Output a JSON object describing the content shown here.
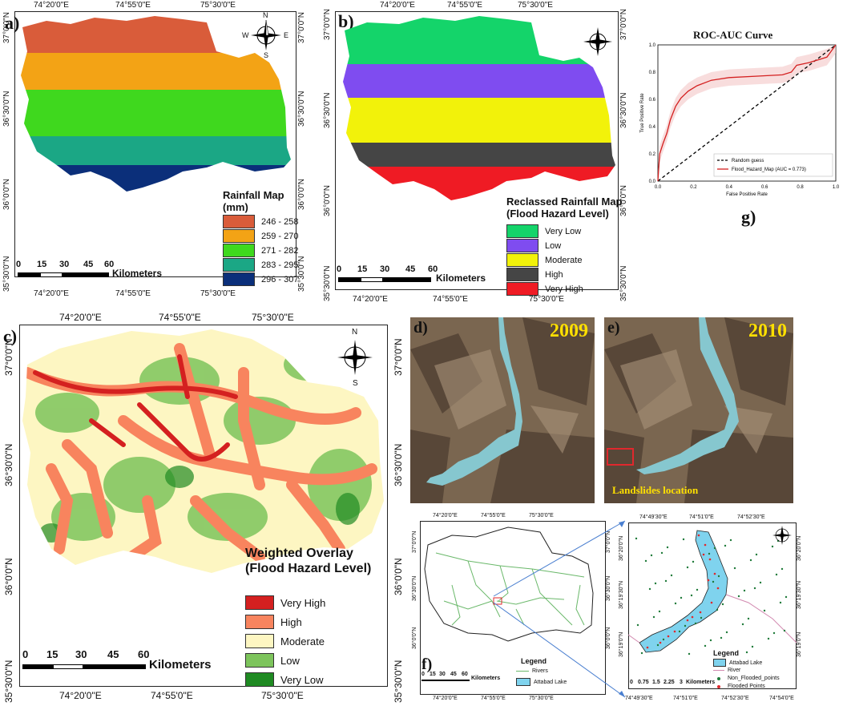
{
  "panels": {
    "a": {
      "label": "a)",
      "top_coords": [
        "74°20'0\"E",
        "74°55'0\"E",
        "75°30'0\"E"
      ],
      "bottom_coords": [
        "74°20'0\"E",
        "74°55'0\"E",
        "75°30'0\"E"
      ],
      "left_coords": [
        "37°0'0\"N",
        "36°30'0\"N",
        "36°0'0\"N",
        "35°30'0\"N"
      ],
      "right_coords": [
        "37°0'0\"N",
        "36°30'0\"N",
        "36°0'0\"N",
        "35°30'0\"N"
      ],
      "legend_title": "Rainfall Map (mm)",
      "legend": [
        {
          "label": "246 - 258",
          "color": "#d95c3a"
        },
        {
          "label": "259 - 270",
          "color": "#f3a315"
        },
        {
          "label": "271 - 282",
          "color": "#3fd81e"
        },
        {
          "label": "283 - 295",
          "color": "#1ba785"
        },
        {
          "label": "296 - 307",
          "color": "#0b2f7a"
        }
      ],
      "scale": {
        "ticks": [
          "0",
          "15",
          "30",
          "45",
          "60"
        ],
        "unit": "Kilometers"
      }
    },
    "b": {
      "label": "b)",
      "top_coords": [
        "74°20'0\"E",
        "74°55'0\"E",
        "75°30'0\"E"
      ],
      "bottom_coords": [
        "74°20'0\"E",
        "74°55'0\"E",
        "75°30'0\"E"
      ],
      "left_coords": [
        "37°0'0\"N",
        "36°30'0\"N",
        "36°0'0\"N",
        "35°30'0\"N"
      ],
      "right_coords": [
        "37°0'0\"N",
        "36°30'0\"N",
        "36°0'0\"N",
        "35°30'0\"N"
      ],
      "legend_title": "Reclassed Rainfall Map (Flood Hazard Level)",
      "legend": [
        {
          "label": "Very Low",
          "color": "#14d46a"
        },
        {
          "label": "Low",
          "color": "#7f4cf0"
        },
        {
          "label": "Moderate",
          "color": "#f2f20a"
        },
        {
          "label": "High",
          "color": "#454545"
        },
        {
          "label": "Very High",
          "color": "#ef1b24"
        }
      ],
      "scale": {
        "ticks": [
          "0",
          "15",
          "30",
          "45",
          "60"
        ],
        "unit": "Kilometers"
      }
    },
    "c": {
      "label": "c)",
      "top_coords": [
        "74°20'0\"E",
        "74°55'0\"E",
        "75°30'0\"E"
      ],
      "bottom_coords": [
        "74°20'0\"E",
        "74°55'0\"E",
        "75°30'0\"E"
      ],
      "left_coords": [
        "37°0'0\"N",
        "36°30'0\"N",
        "36°0'0\"N",
        "35°30'0\"N"
      ],
      "right_coords": [
        "37°0'0\"N",
        "36°30'0\"N",
        "36°0'0\"N",
        "35°30'0\"N"
      ],
      "legend_title": "Weighted Overlay (Flood Hazard Level)",
      "legend": [
        {
          "label": "Very High",
          "color": "#d42020"
        },
        {
          "label": "High",
          "color": "#f8845e"
        },
        {
          "label": "Moderate",
          "color": "#fdf6c2"
        },
        {
          "label": "Low",
          "color": "#7dc45c"
        },
        {
          "label": "Very Low",
          "color": "#1f8a22"
        }
      ],
      "scale": {
        "ticks": [
          "0",
          "15",
          "30",
          "45",
          "60"
        ],
        "unit": "Kilometers"
      }
    },
    "d": {
      "label": "d)",
      "year": "2009"
    },
    "e": {
      "label": "e)",
      "year": "2010",
      "annotation": "Landslides location"
    },
    "f": {
      "label": "f)",
      "top_coords": [
        "74°20'0\"E",
        "74°55'0\"E",
        "75°30'0\"E"
      ],
      "bottom_coords": [
        "74°20'0\"E",
        "74°55'0\"E",
        "75°30'0\"E"
      ],
      "left_coords": [
        "37°0'0\"N",
        "36°30'0\"N",
        "36°0'0\"N"
      ],
      "right_coords": [
        "37°0'0\"N",
        "36°30'0\"N",
        "36°0'0\"N"
      ],
      "legend_title": "Legend",
      "legend": [
        {
          "label": "Rivers",
          "color": "#6ab86a"
        },
        {
          "label": "Attabad Lake",
          "color": "#7fd3ee"
        }
      ],
      "scale": {
        "ticks": [
          "0",
          "15",
          "30",
          "45",
          "60"
        ],
        "unit": "Kilometers"
      }
    },
    "f_inset": {
      "top_coords": [
        "74°49'30\"E",
        "74°51'0\"E",
        "74°52'30\"E"
      ],
      "bottom_coords": [
        "74°49'30\"E",
        "74°51'0\"E",
        "74°52'30\"E",
        "74°54'0\"E"
      ],
      "left_coords": [
        "36°20'0\"N",
        "36°19'30\"N",
        "36°19'0\"N"
      ],
      "right_coords": [
        "36°20'0\"N",
        "36°19'30\"N",
        "36°19'0\"N"
      ],
      "legend_title": "Legend",
      "legend": [
        {
          "label": "Attabad Lake",
          "color": "#7fd3ee",
          "kind": "box"
        },
        {
          "label": "River",
          "color": "#d28ab0",
          "kind": "line"
        },
        {
          "label": "Non_Flooded_points",
          "color": "#1f7a3a",
          "kind": "dot"
        },
        {
          "label": "Flooded Points",
          "color": "#e0282d",
          "kind": "dot"
        }
      ],
      "scale": {
        "ticks": [
          "0",
          "0.75",
          "1.5",
          "2.25",
          "3"
        ],
        "unit": "Kilometers"
      }
    },
    "g": {
      "label": "g)",
      "chart_data": {
        "type": "line",
        "title": "ROC-AUC Curve",
        "xlabel": "False Positive Rate",
        "ylabel": "True Positive Rate",
        "xlim": [
          0,
          1
        ],
        "ylim": [
          0,
          1
        ],
        "xticks": [
          "0.0",
          "0.2",
          "0.4",
          "0.6",
          "0.8",
          "1.0"
        ],
        "yticks": [
          "0.0",
          "0.2",
          "0.4",
          "0.6",
          "0.8",
          "1.0"
        ],
        "legend_position": "bottom-right",
        "series": [
          {
            "name": "Random guess",
            "style": "dashed",
            "color": "#000000",
            "x": [
              0,
              1
            ],
            "y": [
              0,
              1
            ]
          },
          {
            "name": "Flood_Hazard_Map (AUC = 0.773)",
            "style": "solid",
            "color": "#d42020",
            "x": [
              0,
              0.01,
              0.03,
              0.05,
              0.07,
              0.1,
              0.13,
              0.17,
              0.22,
              0.3,
              0.4,
              0.55,
              0.7,
              0.75,
              0.78,
              0.85,
              0.9,
              0.95,
              1.0
            ],
            "y": [
              0,
              0.2,
              0.28,
              0.35,
              0.45,
              0.55,
              0.61,
              0.66,
              0.7,
              0.74,
              0.76,
              0.77,
              0.78,
              0.8,
              0.85,
              0.87,
              0.89,
              0.91,
              1.0
            ]
          }
        ]
      }
    }
  },
  "compass": {
    "n": "N",
    "s": "S",
    "e": "E",
    "w": "W"
  }
}
